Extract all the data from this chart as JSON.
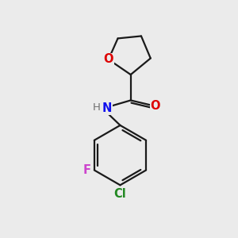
{
  "background_color": "#ebebeb",
  "bond_color": "#1a1a1a",
  "bond_width": 1.6,
  "figsize": [
    3.0,
    3.0
  ],
  "dpi": 100,
  "colors": {
    "O": "#dd0000",
    "N": "#1010ee",
    "H": "#707070",
    "F": "#cc44cc",
    "Cl": "#228822"
  }
}
